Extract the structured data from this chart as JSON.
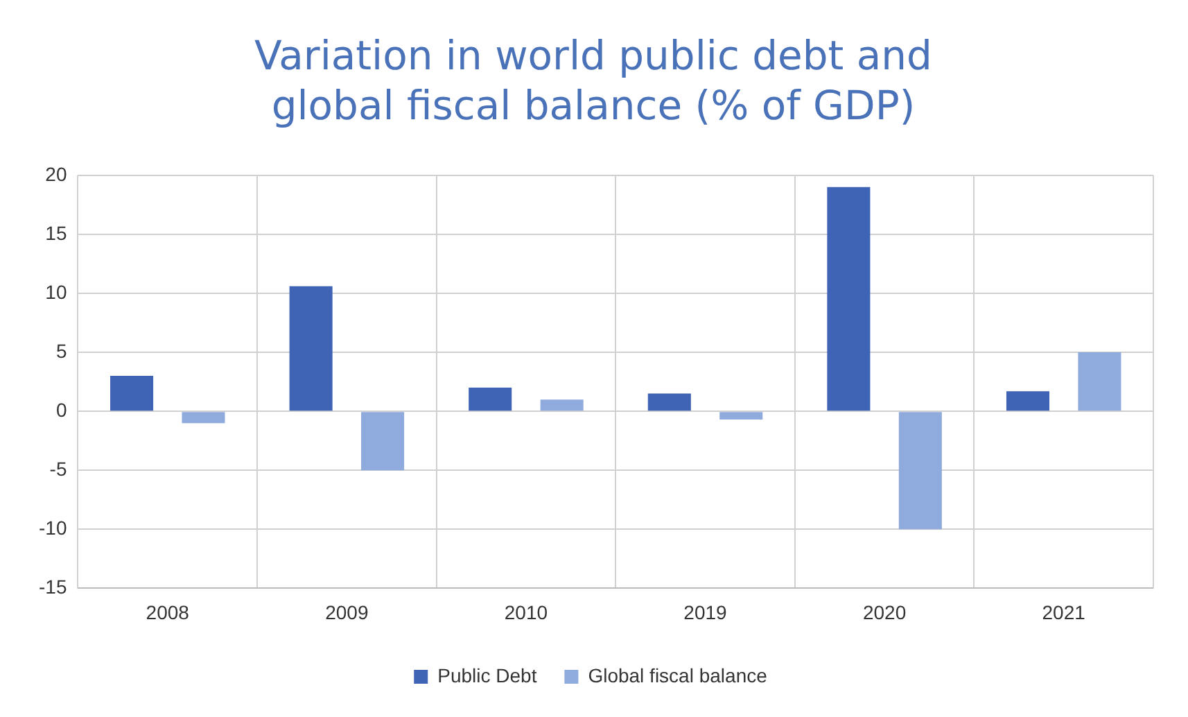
{
  "chart_data": {
    "type": "bar",
    "title": "Variation in world public debt and global fiscal balance (% of GDP)",
    "categories": [
      "2008",
      "2009",
      "2010",
      "2019",
      "2020",
      "2021"
    ],
    "series": [
      {
        "name": "Public Debt",
        "color": "#3f63b5",
        "values": [
          3,
          10.6,
          2,
          1.5,
          19,
          1.7
        ]
      },
      {
        "name": "Global fiscal balance",
        "color": "#8faadc",
        "values": [
          -1,
          -5,
          1,
          -0.7,
          -10,
          5
        ]
      }
    ],
    "ylim": [
      -15,
      20
    ],
    "yticks": [
      -15,
      -10,
      -5,
      0,
      5,
      10,
      15,
      20
    ],
    "grid": true,
    "legend": "bottom"
  }
}
